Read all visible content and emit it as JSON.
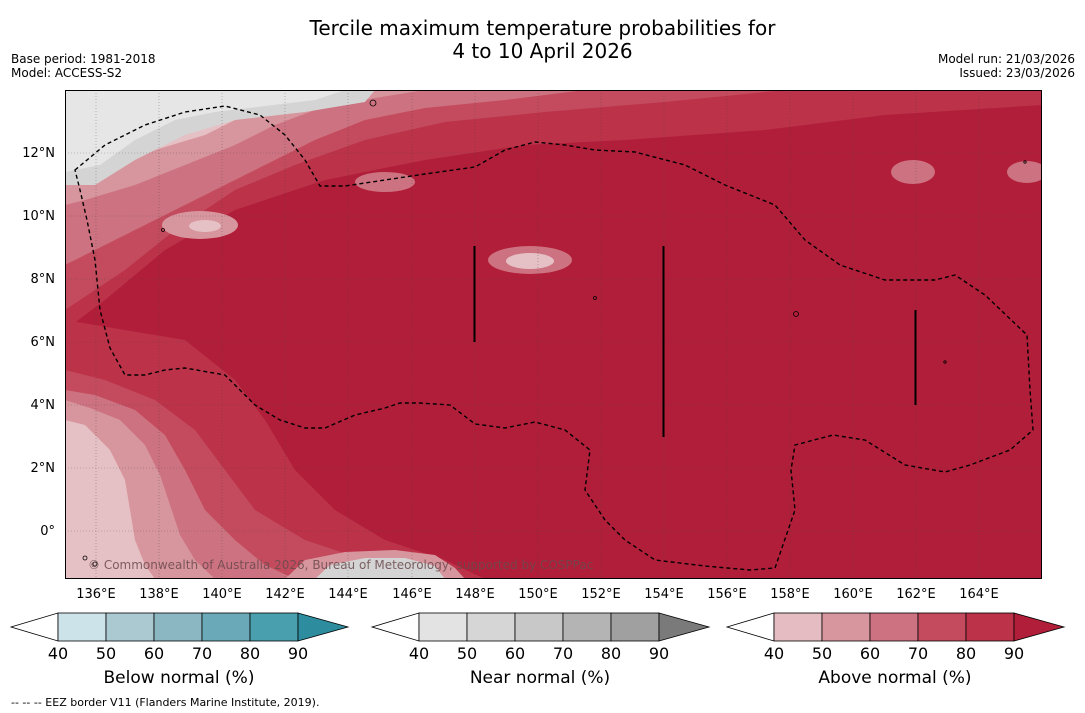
{
  "title": {
    "line1": "Tercile maximum temperature probabilities for",
    "line2": "4 to 10 April 2026"
  },
  "meta": {
    "base_period": "Base period: 1981-2018",
    "model": "Model: ACCESS-S2",
    "model_run": "Model run: 21/03/2026",
    "issued": "Issued: 23/03/2026"
  },
  "map": {
    "lat_labels": [
      "12°N",
      "10°N",
      "8°N",
      "6°N",
      "4°N",
      "2°N",
      "0°"
    ],
    "lat_values": [
      12,
      10,
      8,
      6,
      4,
      2,
      0
    ],
    "lon_labels": [
      "136°E",
      "138°E",
      "140°E",
      "142°E",
      "144°E",
      "146°E",
      "148°E",
      "150°E",
      "152°E",
      "154°E",
      "156°E",
      "158°E",
      "160°E",
      "162°E",
      "164°E"
    ],
    "lon_values": [
      136,
      138,
      140,
      142,
      144,
      146,
      148,
      150,
      152,
      154,
      156,
      158,
      160,
      162,
      164
    ],
    "lon_range": [
      134.9,
      166.0
    ],
    "lat_range": [
      -1.5,
      14.0
    ],
    "copyright": "© Commonwealth of Australia 2026, Bureau of Meteorology, supported by COSPPac",
    "colors": {
      "ocean_dominant": "#b11e39",
      "above_90": "#b11e39",
      "above_80": "#bc3249",
      "above_70": "#c34b5d",
      "above_60": "#cd7280",
      "above_50": "#d7969d",
      "above_40": "#e5c1c5",
      "near_40": "#e3e3e3",
      "near_50": "#d4d4d4"
    }
  },
  "colorbars": [
    {
      "name": "below",
      "title": "Below normal (%)",
      "labels": [
        "40",
        "50",
        "60",
        "70",
        "80",
        "90"
      ],
      "colors": [
        "#ffffff",
        "#cde3ea",
        "#aac9d0",
        "#8ab7c1",
        "#6aaab8",
        "#4a9fae",
        "#2d8d9f"
      ]
    },
    {
      "name": "near",
      "title": "Near normal (%)",
      "labels": [
        "40",
        "50",
        "60",
        "70",
        "80",
        "90"
      ],
      "colors": [
        "#ffffff",
        "#e3e3e3",
        "#d6d6d6",
        "#c8c8c8",
        "#b4b4b4",
        "#a0a0a0",
        "#7a7a7a"
      ]
    },
    {
      "name": "above",
      "title": "Above normal (%)",
      "labels": [
        "40",
        "50",
        "60",
        "70",
        "80",
        "90"
      ],
      "colors": [
        "#ffffff",
        "#e5bcc1",
        "#d7969d",
        "#cd7280",
        "#c34b5d",
        "#bc3249",
        "#b11e39"
      ]
    }
  ],
  "footnote": "-- -- -- EEZ border V11 (Flanders Marine Institute, 2019)."
}
